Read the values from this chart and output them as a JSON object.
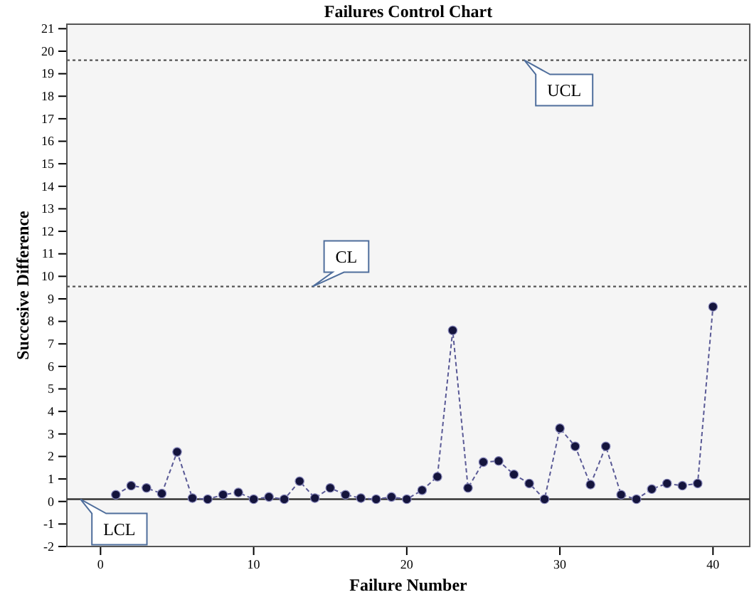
{
  "chart_data": {
    "type": "line",
    "title": "Failures Control Chart",
    "xlabel": "Failure Number",
    "ylabel": "Succesive Difference",
    "x": [
      1,
      2,
      3,
      4,
      5,
      6,
      7,
      8,
      9,
      10,
      11,
      12,
      13,
      14,
      15,
      16,
      17,
      18,
      19,
      20,
      21,
      22,
      23,
      24,
      25,
      26,
      27,
      28,
      29,
      30,
      31,
      32,
      33,
      34,
      35,
      36,
      37,
      38,
      39,
      40
    ],
    "series": [
      {
        "color": "#14143c",
        "values": [
          0.3,
          0.7,
          0.6,
          0.35,
          2.2,
          0.15,
          0.1,
          0.3,
          0.4,
          0.1,
          0.2,
          0.1,
          0.9,
          0.15,
          0.6,
          0.3,
          0.15,
          0.1,
          0.2,
          0.1,
          0.5,
          1.1,
          7.6,
          0.6,
          1.75,
          1.8,
          1.2,
          0.8,
          0.1,
          3.25,
          2.45,
          0.75,
          2.45,
          0.3,
          0.1,
          0.55,
          0.8,
          0.7,
          0.8,
          8.65
        ]
      }
    ],
    "xlim": [
      -2.2,
      42.4
    ],
    "xticks": [
      0,
      10,
      20,
      30,
      40
    ],
    "ylim": [
      -2,
      21.2
    ],
    "yticks": [
      -2,
      -1,
      0,
      1,
      2,
      3,
      4,
      5,
      6,
      7,
      8,
      9,
      10,
      11,
      12,
      13,
      14,
      15,
      16,
      17,
      18,
      19,
      20,
      21
    ],
    "marker": "circle",
    "line_style": "dashed",
    "grid": false,
    "ref_lines": [
      {
        "axis": "y",
        "value": 19.6,
        "label": "UCL",
        "line_style": "dotted",
        "color": "#555555"
      },
      {
        "axis": "y",
        "value": 9.55,
        "label": "CL",
        "line_style": "dotted",
        "color": "#555555"
      },
      {
        "axis": "y",
        "value": 0.1,
        "label": "LCL",
        "line_style": "solid",
        "color": "#333333"
      }
    ]
  }
}
